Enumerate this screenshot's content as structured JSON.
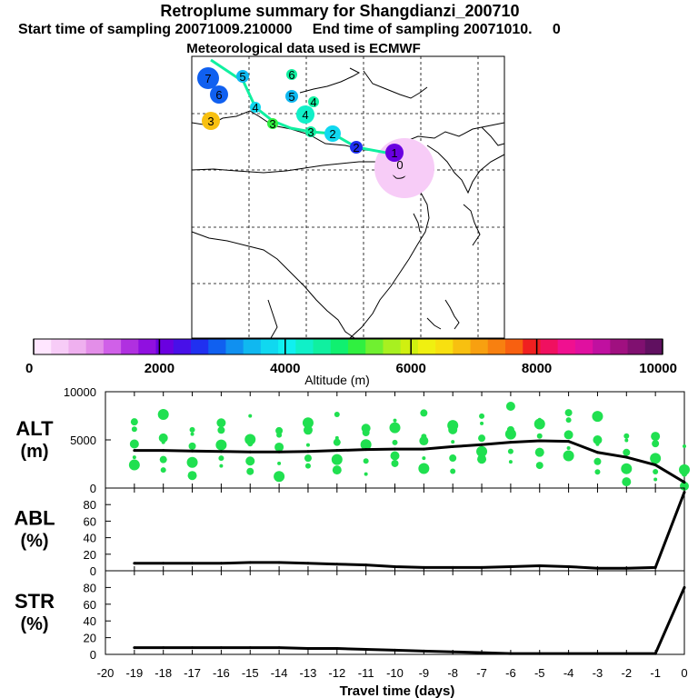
{
  "header": {
    "title": "Retroplume summary for Shangdianzi_200710",
    "start_label": "Start time of sampling 20071009.210000",
    "end_label": "End time of sampling 20071010.     0",
    "met_label": "Meteorological data used is ECMWF"
  },
  "colorbar": {
    "ticks": [
      "0",
      "2000",
      "4000",
      "6000",
      "8000",
      "10000"
    ],
    "label": "Altitude (m)",
    "colors": [
      "#ffe6ff",
      "#f7ccf7",
      "#efb0ef",
      "#e38ee8",
      "#d060e8",
      "#b030e0",
      "#9010e0",
      "#6a00e0",
      "#4810e8",
      "#2030f0",
      "#1060f0",
      "#1090f0",
      "#10b8f0",
      "#10d8f0",
      "#10f0f0",
      "#10f0c8",
      "#10f0a0",
      "#10f070",
      "#30f040",
      "#70f030",
      "#a8f020",
      "#d0f010",
      "#f0f010",
      "#f8e010",
      "#f8c010",
      "#f8a010",
      "#f88010",
      "#f86010",
      "#f02020",
      "#f01060",
      "#f01090",
      "#e010a0",
      "#c010a0",
      "#a01080",
      "#801070",
      "#601060"
    ]
  },
  "map": {
    "markers": [
      {
        "label": "0",
        "alt": 500
      },
      {
        "label": "1",
        "alt": 2200
      },
      {
        "label": "2",
        "alt": 2500
      },
      {
        "label": "2",
        "alt": 3800
      },
      {
        "label": "3",
        "alt": 4500
      },
      {
        "label": "3",
        "alt": 5200
      },
      {
        "label": "3",
        "alt": 6800
      },
      {
        "label": "4",
        "alt": 3700
      },
      {
        "label": "4",
        "alt": 4300
      },
      {
        "label": "4",
        "alt": 4500
      },
      {
        "label": "5",
        "alt": 3500
      },
      {
        "label": "5",
        "alt": 3600
      },
      {
        "label": "6",
        "alt": 2900
      },
      {
        "label": "6",
        "alt": 4600
      },
      {
        "label": "7",
        "alt": 2800
      }
    ]
  },
  "chart_data": [
    {
      "type": "line",
      "panel_label": "ALT",
      "unit": "(m)",
      "x": [
        -19,
        -18,
        -17,
        -16,
        -15,
        -14,
        -13,
        -12,
        -11,
        -10,
        -9,
        -8,
        -7,
        -6,
        -5,
        -4,
        -3,
        -2,
        -1,
        0
      ],
      "values": [
        3900,
        3900,
        3850,
        3800,
        3750,
        3750,
        3800,
        3900,
        4000,
        4050,
        4050,
        4300,
        4500,
        4750,
        4900,
        4850,
        3700,
        3200,
        2400,
        600
      ],
      "ylim": [
        0,
        10000
      ],
      "yticks": [
        "0",
        "5000",
        "10000"
      ]
    },
    {
      "type": "line",
      "panel_label": "ABL",
      "unit": "(%)",
      "x": [
        -19,
        -18,
        -17,
        -16,
        -15,
        -14,
        -13,
        -12,
        -11,
        -10,
        -9,
        -8,
        -7,
        -6,
        -5,
        -4,
        -3,
        -2,
        -1,
        0
      ],
      "values": [
        9,
        9,
        9,
        9,
        10,
        10,
        9,
        8,
        7,
        5,
        4,
        4,
        4,
        5,
        6,
        5,
        3,
        3,
        4,
        95
      ],
      "ylim": [
        0,
        100
      ],
      "yticks": [
        "0",
        "20",
        "40",
        "60",
        "80"
      ]
    },
    {
      "type": "line",
      "panel_label": "STR",
      "unit": "(%)",
      "x": [
        -19,
        -18,
        -17,
        -16,
        -15,
        -14,
        -13,
        -12,
        -11,
        -10,
        -9,
        -8,
        -7,
        -6,
        -5,
        -4,
        -3,
        -2,
        -1,
        0
      ],
      "values": [
        8,
        8,
        8,
        8,
        8,
        8,
        7,
        7,
        6,
        5,
        4,
        3,
        2,
        1,
        1,
        1,
        1,
        1,
        1,
        80
      ],
      "ylim": [
        0,
        100
      ],
      "yticks": [
        "0",
        "20",
        "40",
        "60",
        "80"
      ]
    }
  ],
  "xaxis": {
    "ticks": [
      "-20",
      "-19",
      "-18",
      "-17",
      "-16",
      "-15",
      "-14",
      "-13",
      "-12",
      "-11",
      "-10",
      "-9",
      "-8",
      "-7",
      "-6",
      "-5",
      "-4",
      "-3",
      "-2",
      "-1",
      "0"
    ],
    "label": "Travel time (days)"
  }
}
